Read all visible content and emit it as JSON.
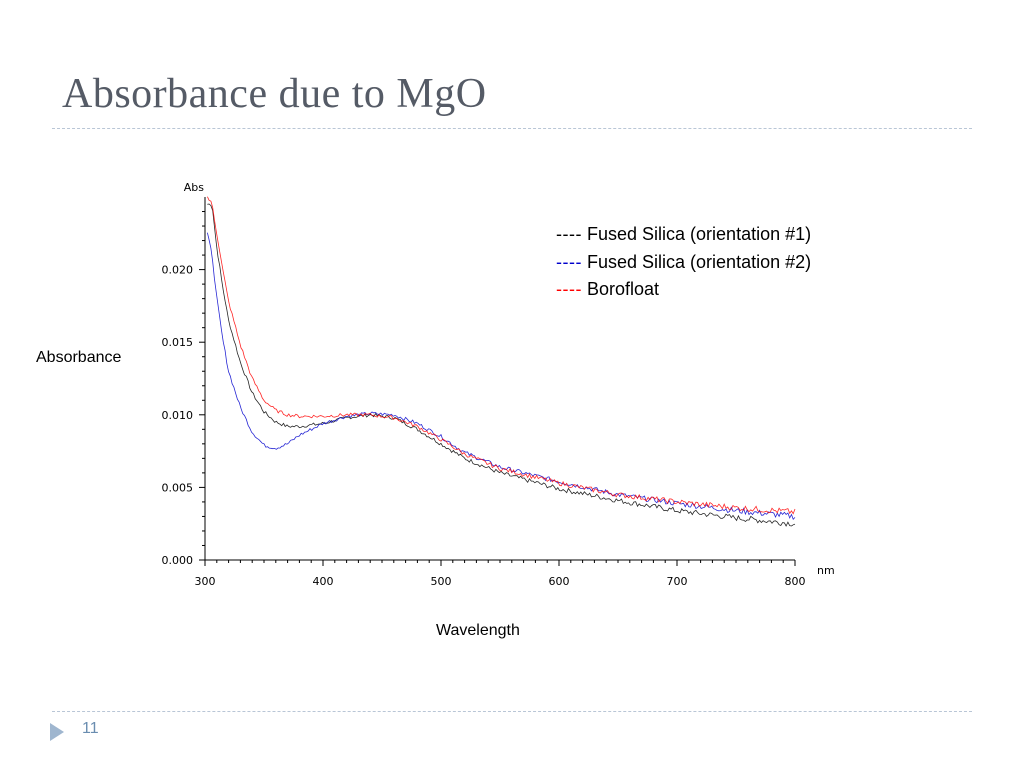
{
  "slide": {
    "title": "Absorbance due to MgO",
    "page_number": "11"
  },
  "colors": {
    "title": "#555b66",
    "divider": "#b9c6d6",
    "nav_marker": "#9fb6cf",
    "page_number": "#6a8db0"
  },
  "chart_data": {
    "type": "line",
    "xlabel": "Wavelength",
    "ylabel": "Absorbance",
    "x_unit": "nm",
    "y_unit": "Abs",
    "xlim": [
      300,
      800
    ],
    "ylim": [
      0.0,
      0.025
    ],
    "x_ticks": [
      300,
      400,
      500,
      600,
      700,
      800
    ],
    "y_ticks": [
      "0.000",
      "0.005",
      "0.010",
      "0.015",
      "0.020"
    ],
    "grid": false,
    "legend_position": "top-right",
    "series": [
      {
        "name": "Fused Silica (orientation #1)",
        "legend_marker": "----",
        "color": "#000000",
        "x": [
          302,
          306,
          310,
          315,
          320,
          330,
          340,
          350,
          360,
          370,
          380,
          400,
          420,
          440,
          460,
          480,
          500,
          520,
          550,
          600,
          650,
          700,
          750,
          800
        ],
        "y": [
          0.0245,
          0.0245,
          0.0215,
          0.0188,
          0.0165,
          0.0136,
          0.0115,
          0.0102,
          0.0095,
          0.0092,
          0.0092,
          0.0094,
          0.0098,
          0.01,
          0.0098,
          0.009,
          0.008,
          0.007,
          0.006,
          0.0049,
          0.0041,
          0.0034,
          0.0029,
          0.0025
        ]
      },
      {
        "name": "Fused Silica (orientation #2)",
        "legend_marker": "----",
        "color": "#0000cc",
        "x": [
          302,
          306,
          310,
          315,
          320,
          330,
          340,
          350,
          360,
          370,
          380,
          400,
          420,
          440,
          460,
          480,
          500,
          520,
          550,
          600,
          650,
          700,
          750,
          800
        ],
        "y": [
          0.0225,
          0.021,
          0.018,
          0.0152,
          0.013,
          0.0105,
          0.0088,
          0.0079,
          0.0077,
          0.008,
          0.0086,
          0.0094,
          0.0099,
          0.0101,
          0.01,
          0.0094,
          0.0085,
          0.0074,
          0.0064,
          0.0054,
          0.0045,
          0.0039,
          0.0034,
          0.003
        ]
      },
      {
        "name": "Borofloat",
        "legend_marker": "----",
        "color": "#ff0000",
        "x": [
          302,
          306,
          310,
          315,
          320,
          330,
          340,
          350,
          360,
          370,
          380,
          400,
          420,
          440,
          460,
          480,
          500,
          520,
          550,
          600,
          650,
          700,
          750,
          800
        ],
        "y": [
          0.025,
          0.0245,
          0.0225,
          0.02,
          0.0178,
          0.0148,
          0.0125,
          0.011,
          0.0103,
          0.01,
          0.0099,
          0.0099,
          0.01,
          0.01,
          0.0098,
          0.0092,
          0.0083,
          0.0073,
          0.0063,
          0.0053,
          0.0045,
          0.004,
          0.0036,
          0.0033
        ]
      }
    ]
  }
}
